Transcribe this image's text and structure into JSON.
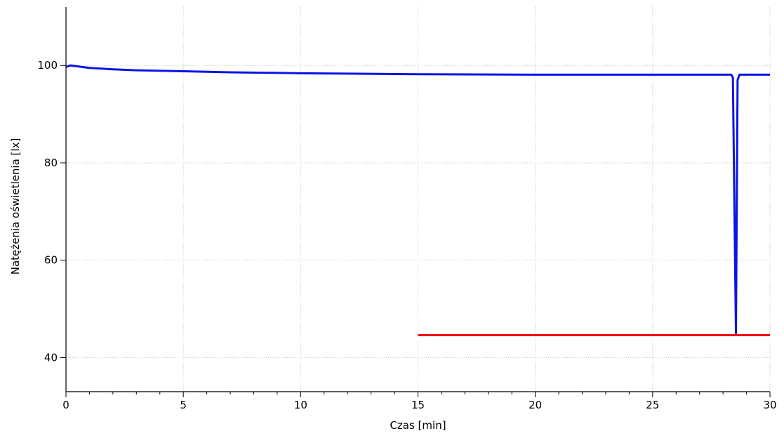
{
  "chart_data": {
    "type": "line",
    "title": "",
    "xlabel": "Czas [min]",
    "ylabel": "Natężenia oświetlenia [lx]",
    "xlim": [
      0,
      30
    ],
    "ylim": [
      33,
      112
    ],
    "x_ticks": [
      0,
      5,
      10,
      15,
      20,
      25,
      30
    ],
    "x_tick_labels": [
      "0",
      "5",
      "10",
      "15",
      "20",
      "25",
      "30"
    ],
    "y_ticks": [
      40,
      60,
      80,
      100
    ],
    "y_tick_labels": [
      "40",
      "60",
      "80",
      "100"
    ],
    "x_minor_ticks": [
      1,
      2,
      3,
      4,
      6,
      7,
      8,
      9,
      11,
      12,
      13,
      14,
      16,
      17,
      18,
      19,
      21,
      22,
      23,
      24,
      26,
      27,
      28,
      29
    ],
    "grid": true,
    "legend": "none",
    "series": [
      {
        "color": "#0a14e6",
        "x": [
          0,
          0.2,
          1,
          2,
          3,
          5,
          7,
          10,
          15,
          20,
          25,
          28.35,
          28.42,
          28.55,
          28.62,
          28.7,
          29,
          30
        ],
        "y": [
          99.7,
          100.0,
          99.5,
          99.2,
          99.0,
          98.8,
          98.6,
          98.4,
          98.2,
          98.1,
          98.1,
          98.1,
          97.5,
          45.0,
          97.0,
          98.1,
          98.1,
          98.1
        ]
      },
      {
        "color": "#ee1111",
        "x": [
          15,
          30
        ],
        "y": [
          44.6,
          44.6
        ]
      }
    ]
  }
}
